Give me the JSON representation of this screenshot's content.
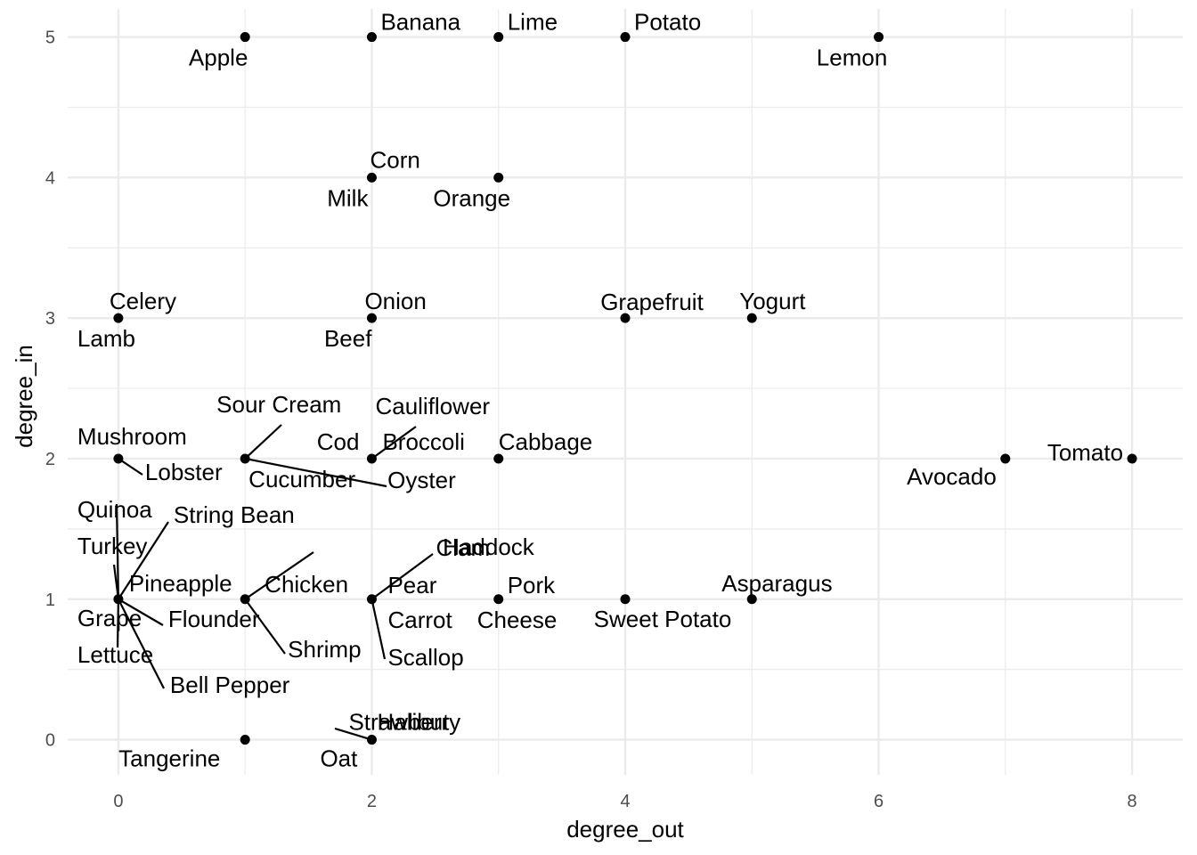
{
  "chart_data": {
    "type": "scatter",
    "xlabel": "degree_out",
    "ylabel": "degree_in",
    "xlim": [
      -0.4,
      8.4
    ],
    "ylim": [
      -0.25,
      5.2
    ],
    "x_ticks": [
      0,
      2,
      4,
      6,
      8
    ],
    "y_ticks": [
      0,
      1,
      2,
      3,
      4,
      5
    ],
    "grid": true,
    "theme": "minimal",
    "point_color": "#000000",
    "grid_color": "#ebebeb",
    "points": [
      {
        "x": 1,
        "y": 5
      },
      {
        "x": 2,
        "y": 5
      },
      {
        "x": 3,
        "y": 5
      },
      {
        "x": 4,
        "y": 5
      },
      {
        "x": 6,
        "y": 5
      },
      {
        "x": 2,
        "y": 4
      },
      {
        "x": 3,
        "y": 4
      },
      {
        "x": 0,
        "y": 3
      },
      {
        "x": 2,
        "y": 3
      },
      {
        "x": 4,
        "y": 3
      },
      {
        "x": 5,
        "y": 3
      },
      {
        "x": 0,
        "y": 2
      },
      {
        "x": 1,
        "y": 2
      },
      {
        "x": 2,
        "y": 2
      },
      {
        "x": 3,
        "y": 2
      },
      {
        "x": 7,
        "y": 2
      },
      {
        "x": 8,
        "y": 2
      },
      {
        "x": 0,
        "y": 1
      },
      {
        "x": 1,
        "y": 1
      },
      {
        "x": 2,
        "y": 1
      },
      {
        "x": 3,
        "y": 1
      },
      {
        "x": 4,
        "y": 1
      },
      {
        "x": 5,
        "y": 1
      },
      {
        "x": 1,
        "y": 0
      },
      {
        "x": 2,
        "y": 0
      }
    ],
    "labels": [
      {
        "text": "Apple",
        "x": 1,
        "y": 5
      },
      {
        "text": "Banana",
        "x": 2,
        "y": 5
      },
      {
        "text": "Lime",
        "x": 3,
        "y": 5
      },
      {
        "text": "Potato",
        "x": 4,
        "y": 5
      },
      {
        "text": "Lemon",
        "x": 6,
        "y": 5
      },
      {
        "text": "Corn",
        "x": 2,
        "y": 4
      },
      {
        "text": "Milk",
        "x": 2,
        "y": 4
      },
      {
        "text": "Orange",
        "x": 3,
        "y": 4
      },
      {
        "text": "Celery",
        "x": 0,
        "y": 3
      },
      {
        "text": "Lamb",
        "x": 0,
        "y": 3
      },
      {
        "text": "Onion",
        "x": 2,
        "y": 3
      },
      {
        "text": "Beef",
        "x": 2,
        "y": 3
      },
      {
        "text": "Grapefruit",
        "x": 4,
        "y": 3
      },
      {
        "text": "Yogurt",
        "x": 5,
        "y": 3
      },
      {
        "text": "Sour Cream",
        "x": 1,
        "y": 2
      },
      {
        "text": "Cauliflower",
        "x": 2,
        "y": 2
      },
      {
        "text": "Mushroom",
        "x": 0,
        "y": 2
      },
      {
        "text": "Cod",
        "x": 2,
        "y": 2
      },
      {
        "text": "Broccoli",
        "x": 2,
        "y": 2
      },
      {
        "text": "Cabbage",
        "x": 3,
        "y": 2
      },
      {
        "text": "Lobster",
        "x": 0,
        "y": 2
      },
      {
        "text": "Cucumber",
        "x": 1,
        "y": 2
      },
      {
        "text": "Oyster",
        "x": 1,
        "y": 2
      },
      {
        "text": "Tomato",
        "x": 8,
        "y": 2
      },
      {
        "text": "Avocado",
        "x": 7,
        "y": 2
      },
      {
        "text": "Quinoa",
        "x": 0,
        "y": 1
      },
      {
        "text": "String Bean",
        "x": 0,
        "y": 1
      },
      {
        "text": "Turkey",
        "x": 0,
        "y": 1
      },
      {
        "text": "Haddock",
        "x": 1,
        "y": 1
      },
      {
        "text": "Clam",
        "x": 2,
        "y": 1
      },
      {
        "text": "Pineapple",
        "x": 0,
        "y": 1
      },
      {
        "text": "Chicken",
        "x": 1,
        "y": 1
      },
      {
        "text": "Pear",
        "x": 2,
        "y": 1
      },
      {
        "text": "Pork",
        "x": 3,
        "y": 1
      },
      {
        "text": "Asparagus",
        "x": 5,
        "y": 1
      },
      {
        "text": "Grape",
        "x": 0,
        "y": 1
      },
      {
        "text": "Flounder",
        "x": 0,
        "y": 1
      },
      {
        "text": "Carrot",
        "x": 2,
        "y": 1
      },
      {
        "text": "Cheese",
        "x": 3,
        "y": 1
      },
      {
        "text": "Sweet Potato",
        "x": 4,
        "y": 1
      },
      {
        "text": "Shrimp",
        "x": 1,
        "y": 1
      },
      {
        "text": "Lettuce",
        "x": 0,
        "y": 1
      },
      {
        "text": "Scallop",
        "x": 2,
        "y": 1
      },
      {
        "text": "Bell Pepper",
        "x": 0,
        "y": 1
      },
      {
        "text": "Halibut",
        "x": 2,
        "y": 0
      },
      {
        "text": "Strawberry",
        "x": 2,
        "y": 0
      },
      {
        "text": "Tangerine",
        "x": 1,
        "y": 0
      },
      {
        "text": "Oat",
        "x": 2,
        "y": 0
      }
    ]
  }
}
